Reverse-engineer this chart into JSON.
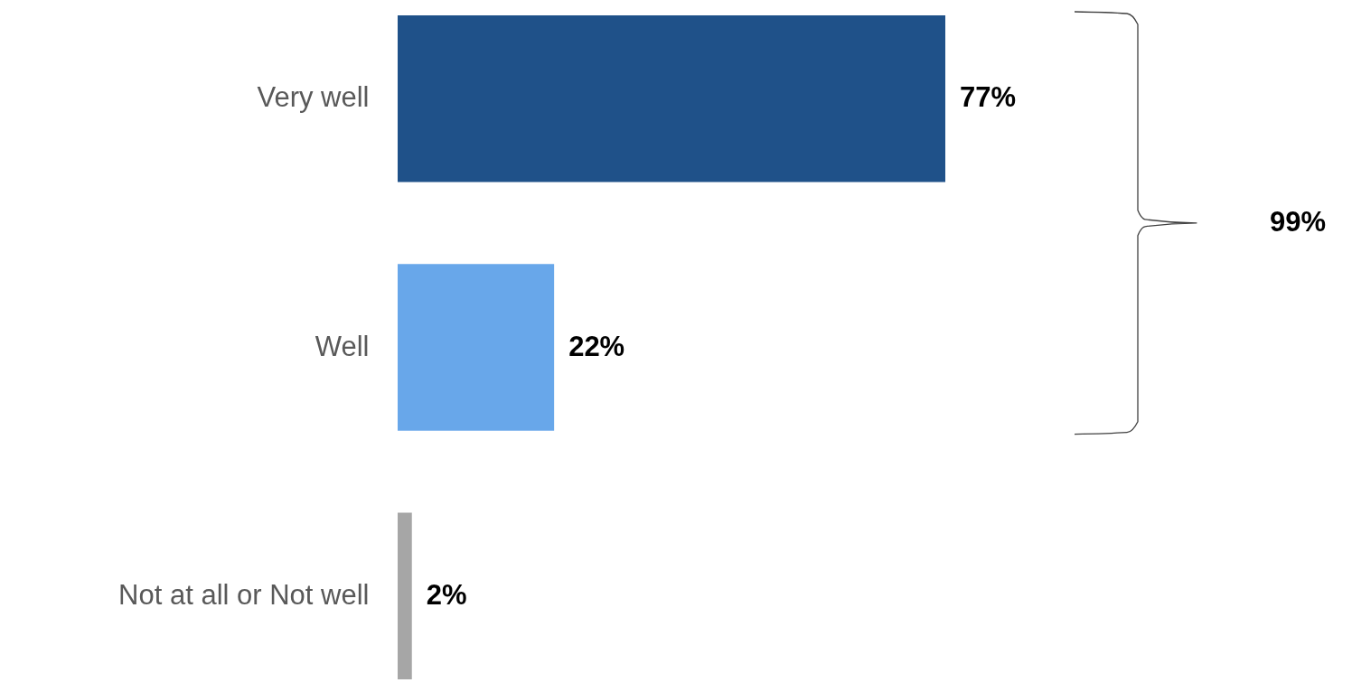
{
  "chart_data": {
    "type": "bar",
    "orientation": "horizontal",
    "categories": [
      "Very well",
      "Well",
      "Not at all or Not well"
    ],
    "values": [
      77,
      22,
      2
    ],
    "colors": [
      "#1f5189",
      "#68a7ea",
      "#a6a6a6"
    ],
    "value_labels": [
      "77%",
      "22%",
      "2%"
    ],
    "annotations": [
      "99%"
    ],
    "grid": false
  }
}
